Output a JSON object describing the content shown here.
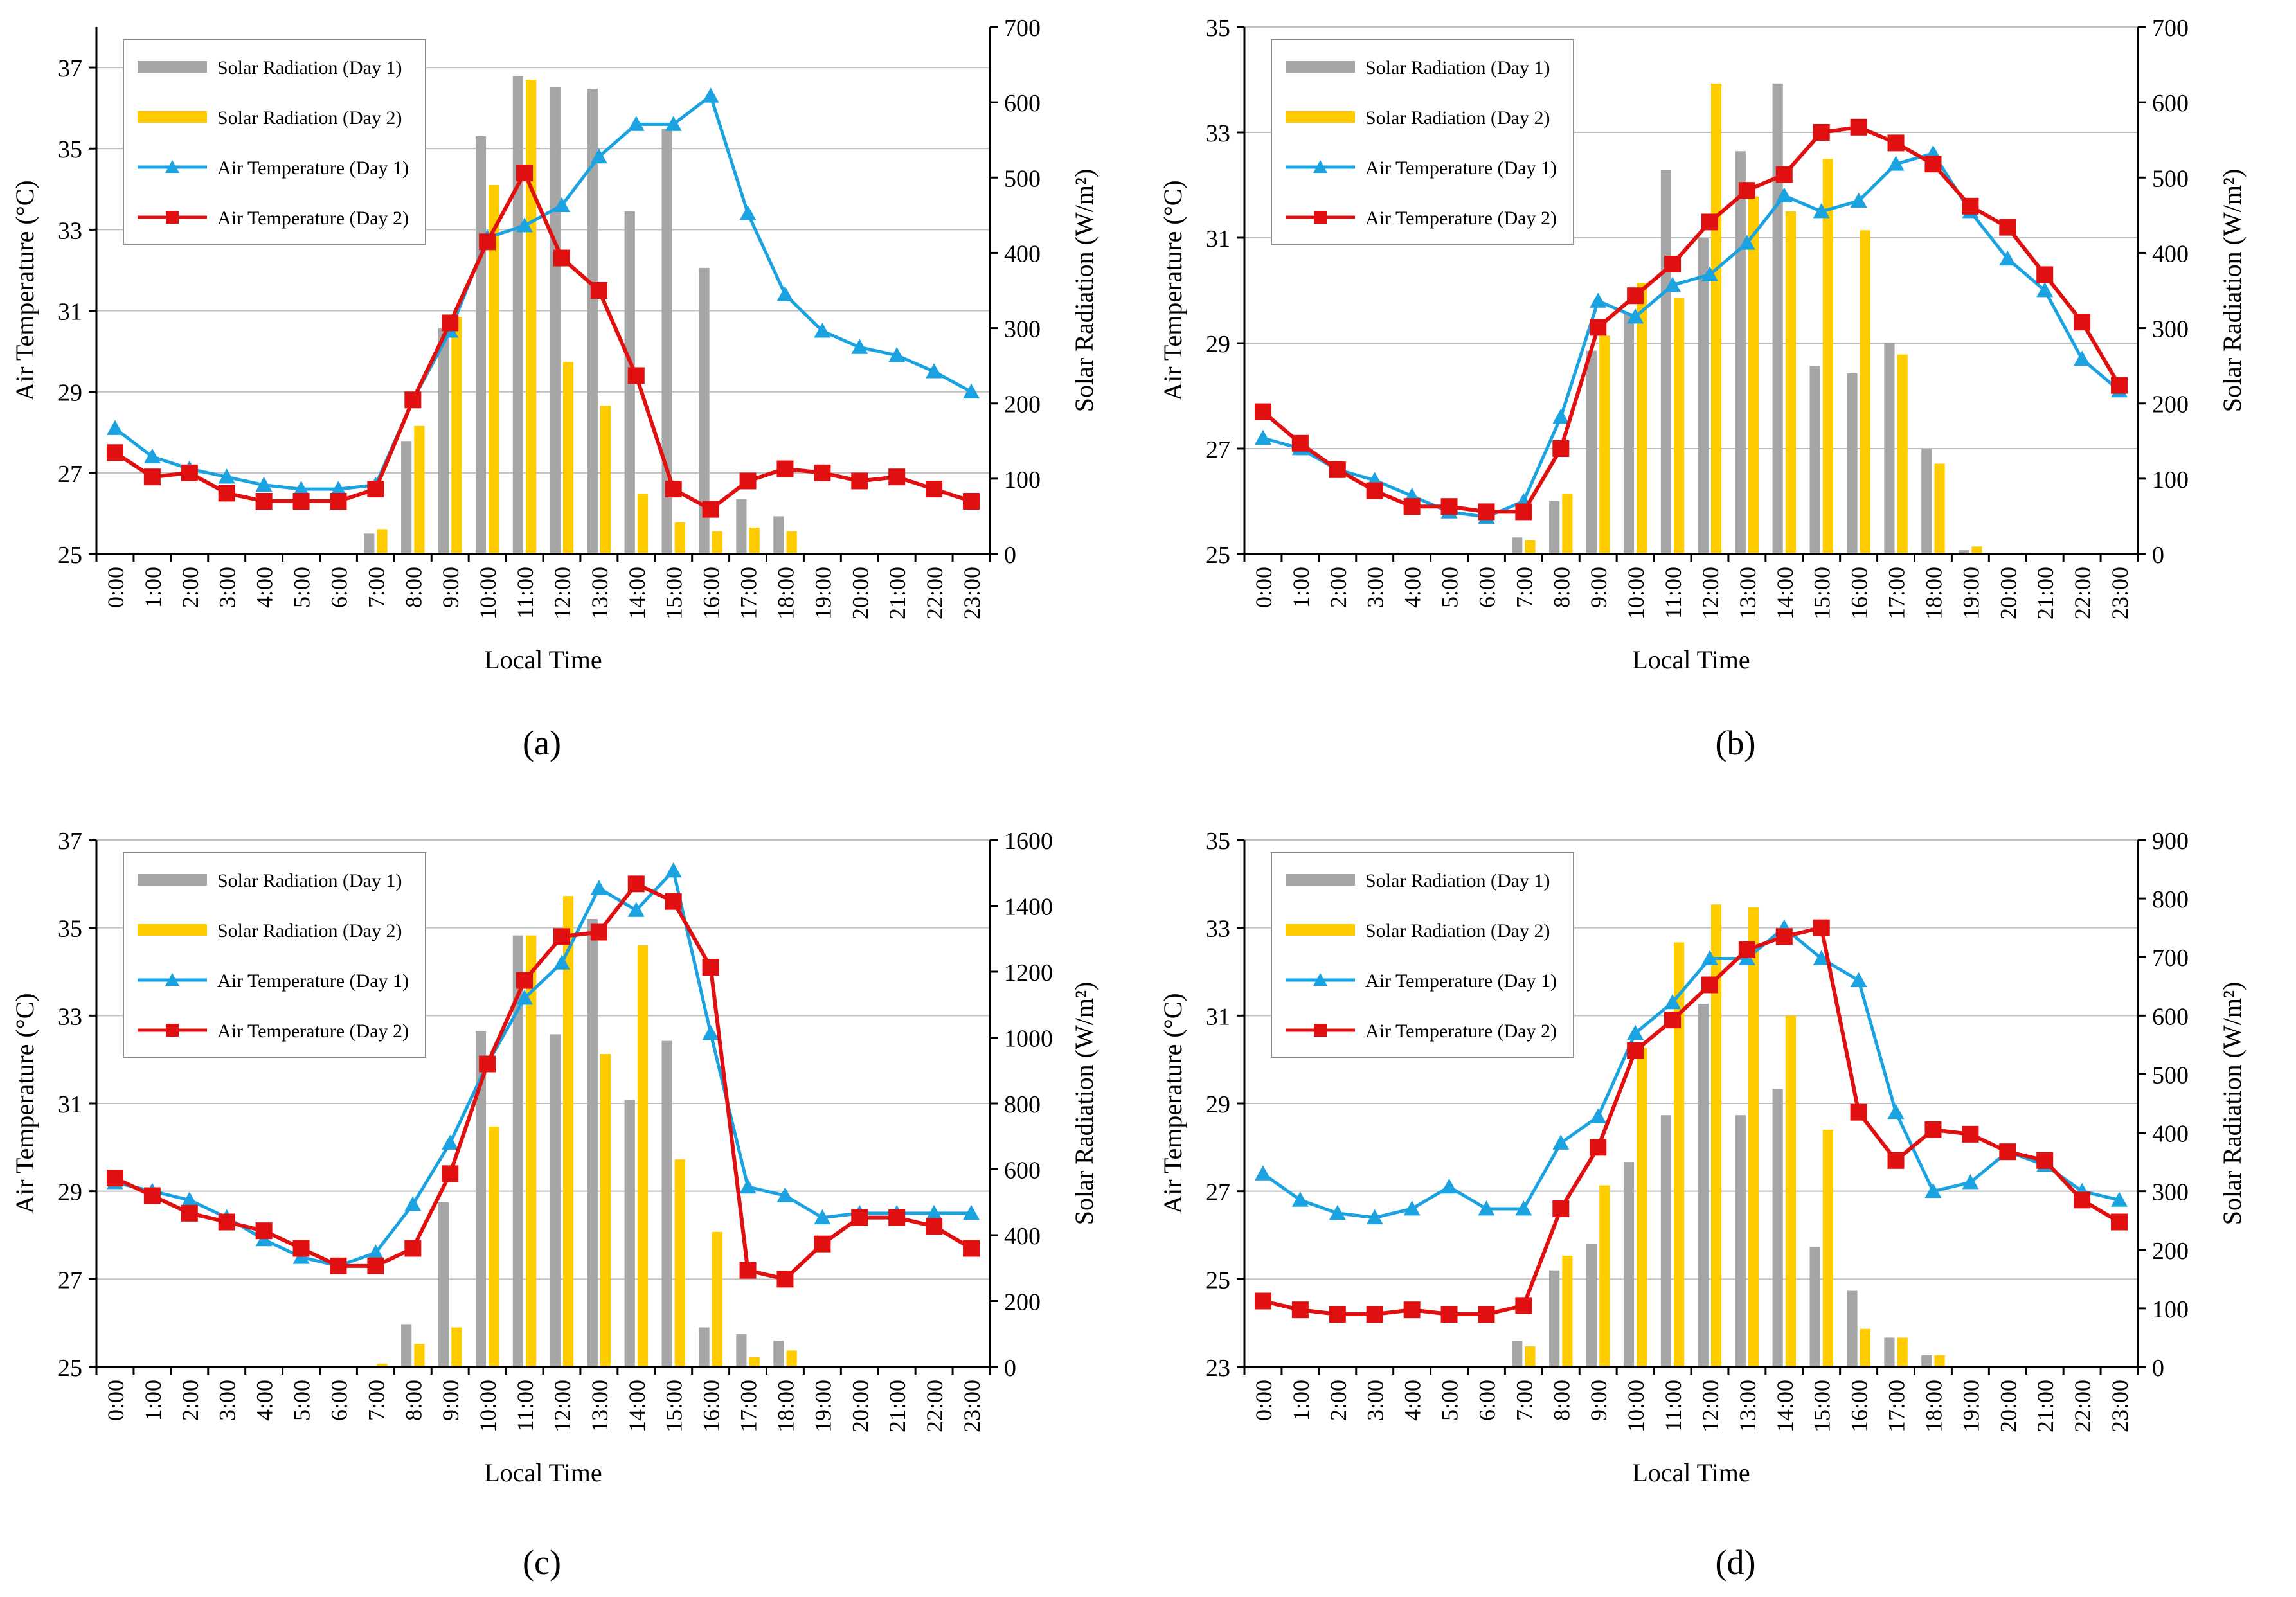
{
  "figure": {
    "captions": [
      "(a)",
      "(b)",
      "(c)",
      "(d)"
    ]
  },
  "colors": {
    "day1_bar": "#a6a6a6",
    "day2_bar": "#ffcc00",
    "day1_line": "#1aa3e0",
    "day2_line": "#e01010",
    "grid": "#bfbfbf",
    "axis": "#000000"
  },
  "chart_data": [
    {
      "id": "a",
      "type": "bar+line",
      "xlabel": "Local Time",
      "ylabel_left": "Air Temperature (°C)",
      "ylabel_right": "Solar Radiation (W/m²)",
      "ylim_left": [
        25,
        38
      ],
      "yticks_left": [
        25,
        27,
        29,
        31,
        33,
        35,
        37
      ],
      "ylim_right": [
        0,
        700
      ],
      "yticks_right": [
        0,
        100,
        200,
        300,
        400,
        500,
        600,
        700
      ],
      "grid": true,
      "legend_position": "top-left",
      "categories": [
        "0:00",
        "1:00",
        "2:00",
        "3:00",
        "4:00",
        "5:00",
        "6:00",
        "7:00",
        "8:00",
        "9:00",
        "10:00",
        "11:00",
        "12:00",
        "13:00",
        "14:00",
        "15:00",
        "16:00",
        "17:00",
        "18:00",
        "19:00",
        "20:00",
        "21:00",
        "22:00",
        "23:00"
      ],
      "series": [
        {
          "name": "Solar Radiation (Day 1)",
          "kind": "bar",
          "axis": "right",
          "values": [
            0,
            0,
            0,
            0,
            0,
            0,
            0,
            27,
            150,
            300,
            555,
            635,
            620,
            618,
            455,
            565,
            380,
            73,
            50,
            0,
            0,
            0,
            0,
            0
          ]
        },
        {
          "name": "Solar Radiation (Day 2)",
          "kind": "bar",
          "axis": "right",
          "values": [
            0,
            0,
            0,
            0,
            0,
            0,
            0,
            33,
            170,
            315,
            490,
            630,
            255,
            197,
            80,
            42,
            30,
            35,
            30,
            0,
            0,
            0,
            0,
            0
          ]
        },
        {
          "name": "Air Temperature (Day 1)",
          "kind": "line",
          "marker": "triangle",
          "axis": "left",
          "values": [
            28.1,
            27.4,
            27.1,
            26.9,
            26.7,
            26.6,
            26.6,
            26.7,
            28.8,
            30.5,
            32.8,
            33.1,
            33.6,
            34.8,
            35.6,
            35.6,
            36.3,
            33.4,
            31.4,
            30.5,
            30.1,
            29.9,
            29.5,
            29.0
          ]
        },
        {
          "name": "Air Temperature (Day 2)",
          "kind": "line",
          "marker": "square",
          "axis": "left",
          "values": [
            27.5,
            26.9,
            27.0,
            26.5,
            26.3,
            26.3,
            26.3,
            26.6,
            28.8,
            30.7,
            32.7,
            34.4,
            32.3,
            31.5,
            29.4,
            26.6,
            26.1,
            26.8,
            27.1,
            27.0,
            26.8,
            26.9,
            26.6,
            26.3
          ]
        }
      ]
    },
    {
      "id": "b",
      "type": "bar+line",
      "xlabel": "Local Time",
      "ylabel_left": "Air Temperature (°C)",
      "ylabel_right": "Solar Radiation (W/m²)",
      "ylim_left": [
        25,
        35
      ],
      "yticks_left": [
        25,
        27,
        29,
        31,
        33,
        35
      ],
      "ylim_right": [
        0,
        700
      ],
      "yticks_right": [
        0,
        100,
        200,
        300,
        400,
        500,
        600,
        700
      ],
      "grid": true,
      "legend_position": "top-left",
      "categories": [
        "0:00",
        "1:00",
        "2:00",
        "3:00",
        "4:00",
        "5:00",
        "6:00",
        "7:00",
        "8:00",
        "9:00",
        "10:00",
        "11:00",
        "12:00",
        "13:00",
        "14:00",
        "15:00",
        "16:00",
        "17:00",
        "18:00",
        "19:00",
        "20:00",
        "21:00",
        "22:00",
        "23:00"
      ],
      "series": [
        {
          "name": "Solar Radiation (Day 1)",
          "kind": "bar",
          "axis": "right",
          "values": [
            0,
            0,
            0,
            0,
            0,
            0,
            0,
            22,
            70,
            270,
            320,
            510,
            420,
            535,
            625,
            250,
            240,
            280,
            140,
            5,
            0,
            0,
            0,
            0
          ]
        },
        {
          "name": "Solar Radiation (Day 2)",
          "kind": "bar",
          "axis": "right",
          "values": [
            0,
            0,
            0,
            0,
            0,
            0,
            0,
            18,
            80,
            290,
            360,
            340,
            625,
            475,
            455,
            525,
            430,
            265,
            120,
            10,
            0,
            0,
            0,
            0
          ]
        },
        {
          "name": "Air Temperature (Day 1)",
          "kind": "line",
          "marker": "triangle",
          "axis": "left",
          "values": [
            27.2,
            27.0,
            26.6,
            26.4,
            26.1,
            25.8,
            25.7,
            26.0,
            27.6,
            29.8,
            29.5,
            30.1,
            30.3,
            30.9,
            31.8,
            31.5,
            31.7,
            32.4,
            32.6,
            31.5,
            30.6,
            30.0,
            28.7,
            28.1
          ]
        },
        {
          "name": "Air Temperature (Day 2)",
          "kind": "line",
          "marker": "square",
          "axis": "left",
          "values": [
            27.7,
            27.1,
            26.6,
            26.2,
            25.9,
            25.9,
            25.8,
            25.8,
            27.0,
            29.3,
            29.9,
            30.5,
            31.3,
            31.9,
            32.2,
            33.0,
            33.1,
            32.8,
            32.4,
            31.6,
            31.2,
            30.3,
            29.4,
            28.2
          ]
        }
      ]
    },
    {
      "id": "c",
      "type": "bar+line",
      "xlabel": "Local Time",
      "ylabel_left": "Air Temperature (°C)",
      "ylabel_right": "Solar Radiation (W/m²)",
      "ylim_left": [
        25,
        37
      ],
      "yticks_left": [
        25,
        27,
        29,
        31,
        33,
        35,
        37
      ],
      "ylim_right": [
        0,
        1600
      ],
      "yticks_right": [
        0,
        200,
        400,
        600,
        800,
        1000,
        1200,
        1400,
        1600
      ],
      "grid": true,
      "legend_position": "top-left",
      "categories": [
        "0:00",
        "1:00",
        "2:00",
        "3:00",
        "4:00",
        "5:00",
        "6:00",
        "7:00",
        "8:00",
        "9:00",
        "10:00",
        "11:00",
        "12:00",
        "13:00",
        "14:00",
        "15:00",
        "16:00",
        "17:00",
        "18:00",
        "19:00",
        "20:00",
        "21:00",
        "22:00",
        "23:00"
      ],
      "series": [
        {
          "name": "Solar Radiation (Day 1)",
          "kind": "bar",
          "axis": "right",
          "values": [
            0,
            0,
            0,
            0,
            0,
            0,
            0,
            0,
            130,
            500,
            1020,
            1310,
            1010,
            1360,
            810,
            990,
            120,
            100,
            80,
            0,
            0,
            0,
            0,
            0
          ]
        },
        {
          "name": "Solar Radiation (Day 2)",
          "kind": "bar",
          "axis": "right",
          "values": [
            0,
            0,
            0,
            0,
            0,
            0,
            0,
            10,
            70,
            120,
            730,
            1310,
            1430,
            950,
            1280,
            630,
            410,
            30,
            50,
            0,
            0,
            0,
            0,
            0
          ]
        },
        {
          "name": "Air Temperature (Day 1)",
          "kind": "line",
          "marker": "triangle",
          "axis": "left",
          "values": [
            29.2,
            29.0,
            28.8,
            28.4,
            27.9,
            27.5,
            27.3,
            27.6,
            28.7,
            30.1,
            31.9,
            33.4,
            34.2,
            35.9,
            35.4,
            36.3,
            32.6,
            29.1,
            28.9,
            28.4,
            28.5,
            28.5,
            28.5,
            28.5
          ]
        },
        {
          "name": "Air Temperature (Day 2)",
          "kind": "line",
          "marker": "square",
          "axis": "left",
          "values": [
            29.3,
            28.9,
            28.5,
            28.3,
            28.1,
            27.7,
            27.3,
            27.3,
            27.7,
            29.4,
            31.9,
            33.8,
            34.8,
            34.9,
            36.0,
            35.6,
            34.1,
            27.2,
            27.0,
            27.8,
            28.4,
            28.4,
            28.2,
            27.7
          ]
        }
      ]
    },
    {
      "id": "d",
      "type": "bar+line",
      "xlabel": "Local Time",
      "ylabel_left": "Air Temperature (°C)",
      "ylabel_right": "Solar Radiation (W/m²)",
      "ylim_left": [
        23,
        35
      ],
      "yticks_left": [
        23,
        25,
        27,
        29,
        31,
        33,
        35
      ],
      "ylim_right": [
        0,
        900
      ],
      "yticks_right": [
        0,
        100,
        200,
        300,
        400,
        500,
        600,
        700,
        800,
        900
      ],
      "grid": true,
      "legend_position": "top-left",
      "categories": [
        "0:00",
        "1:00",
        "2:00",
        "3:00",
        "4:00",
        "5:00",
        "6:00",
        "7:00",
        "8:00",
        "9:00",
        "10:00",
        "11:00",
        "12:00",
        "13:00",
        "14:00",
        "15:00",
        "16:00",
        "17:00",
        "18:00",
        "19:00",
        "20:00",
        "21:00",
        "22:00",
        "23:00"
      ],
      "series": [
        {
          "name": "Solar Radiation (Day 1)",
          "kind": "bar",
          "axis": "right",
          "values": [
            0,
            0,
            0,
            0,
            0,
            0,
            0,
            45,
            165,
            210,
            350,
            430,
            620,
            430,
            475,
            205,
            130,
            50,
            20,
            0,
            0,
            0,
            0,
            0
          ]
        },
        {
          "name": "Solar Radiation (Day 2)",
          "kind": "bar",
          "axis": "right",
          "values": [
            0,
            0,
            0,
            0,
            0,
            0,
            0,
            35,
            190,
            310,
            545,
            725,
            790,
            785,
            600,
            405,
            65,
            50,
            20,
            0,
            0,
            0,
            0,
            0
          ]
        },
        {
          "name": "Air Temperature (Day 1)",
          "kind": "line",
          "marker": "triangle",
          "axis": "left",
          "values": [
            27.4,
            26.8,
            26.5,
            26.4,
            26.6,
            27.1,
            26.6,
            26.6,
            28.1,
            28.7,
            30.6,
            31.3,
            32.3,
            32.3,
            33.0,
            32.3,
            31.8,
            28.8,
            27.0,
            27.2,
            27.9,
            27.6,
            27.0,
            26.8
          ]
        },
        {
          "name": "Air Temperature (Day 2)",
          "kind": "line",
          "marker": "square",
          "axis": "left",
          "values": [
            24.5,
            24.3,
            24.2,
            24.2,
            24.3,
            24.2,
            24.2,
            24.4,
            26.6,
            28.0,
            30.2,
            30.9,
            31.7,
            32.5,
            32.8,
            33.0,
            28.8,
            27.7,
            28.4,
            28.3,
            27.9,
            27.7,
            26.8,
            26.3
          ]
        }
      ]
    }
  ]
}
